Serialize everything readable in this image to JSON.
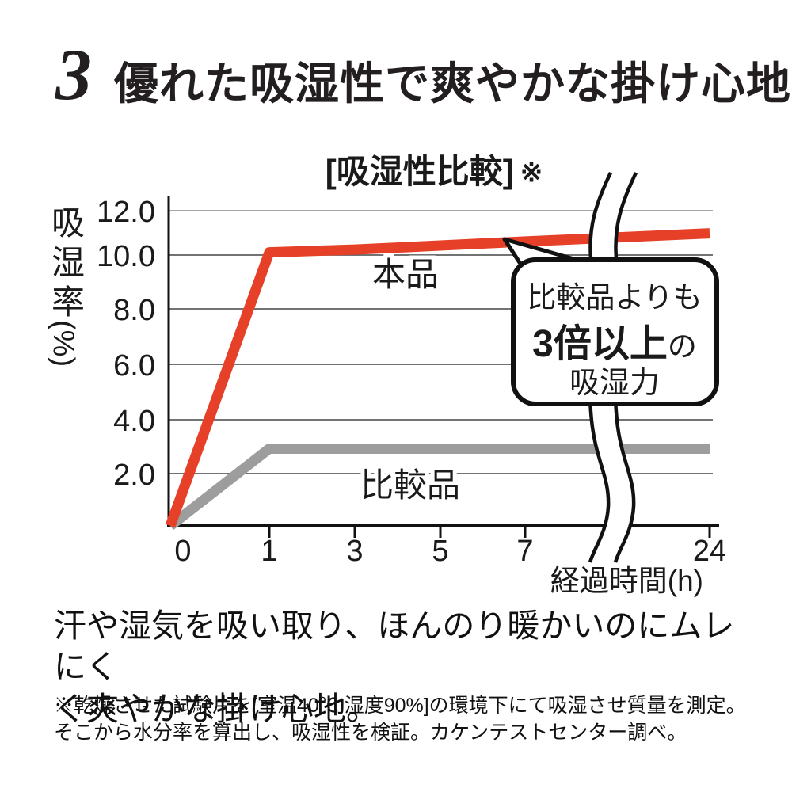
{
  "header": {
    "number": "3",
    "title": "優れた吸湿性で爽やかな掛け心地"
  },
  "chart": {
    "title": "[吸湿性比較]",
    "title_note": "※",
    "y_axis_label": "吸湿率(%)",
    "x_axis_label": "経過時間(h)",
    "series_product_label": "本品",
    "series_comparison_label": "比較品",
    "bubble": {
      "line1": "比較品よりも",
      "line2_bold": "3倍以上",
      "line2_suffix": "の",
      "line3": "吸湿力"
    }
  },
  "chart_data": {
    "type": "line",
    "title": "[吸湿性比較]※",
    "xlabel": "経過時間(h)",
    "ylabel": "吸湿率(%)",
    "x": [
      0,
      1,
      3,
      5,
      7,
      24
    ],
    "x_tick_labels": [
      "0",
      "1",
      "3",
      "5",
      "7",
      "24"
    ],
    "y_ticks": [
      2.0,
      4.0,
      6.0,
      8.0,
      10.0,
      12.0
    ],
    "y_tick_labels": [
      "2.0",
      "4.0",
      "6.0",
      "8.0",
      "10.0",
      "12.0"
    ],
    "ylim": [
      0,
      12.6
    ],
    "grid": true,
    "legend_position": "inline-labels",
    "axis_break_between": [
      7,
      24
    ],
    "series": [
      {
        "name": "本品",
        "color": "#e64128",
        "values": [
          0,
          10.1,
          10.2,
          10.35,
          10.5,
          10.8
        ]
      },
      {
        "name": "比較品",
        "color": "#9d9d9d",
        "values": [
          0,
          2.85,
          2.85,
          2.85,
          2.85,
          2.85
        ]
      }
    ],
    "annotation": "比較品よりも3倍以上の吸湿力"
  },
  "body": {
    "line1": "汗や湿気を吸い取り、ほんのり暖かいのにムレにく",
    "line2": "く爽やかな掛け心地。"
  },
  "footnote": {
    "line1": "※乾燥させた試験片を[室温40℃ 湿度90%]の環境下にて吸湿させ質量を測定。",
    "line2": "そこから水分率を算出し、吸湿性を検証。カケンテストセンター調べ。"
  },
  "colors": {
    "product_line": "#e64128",
    "comparison_line": "#9d9d9d",
    "grid_line": "#5f5f5f",
    "grid_line_top": "#9a9a9a",
    "axis": "#111111",
    "text": "#1a1a1a",
    "bubble_bg": "#ffffff",
    "bubble_border": "#111111"
  }
}
